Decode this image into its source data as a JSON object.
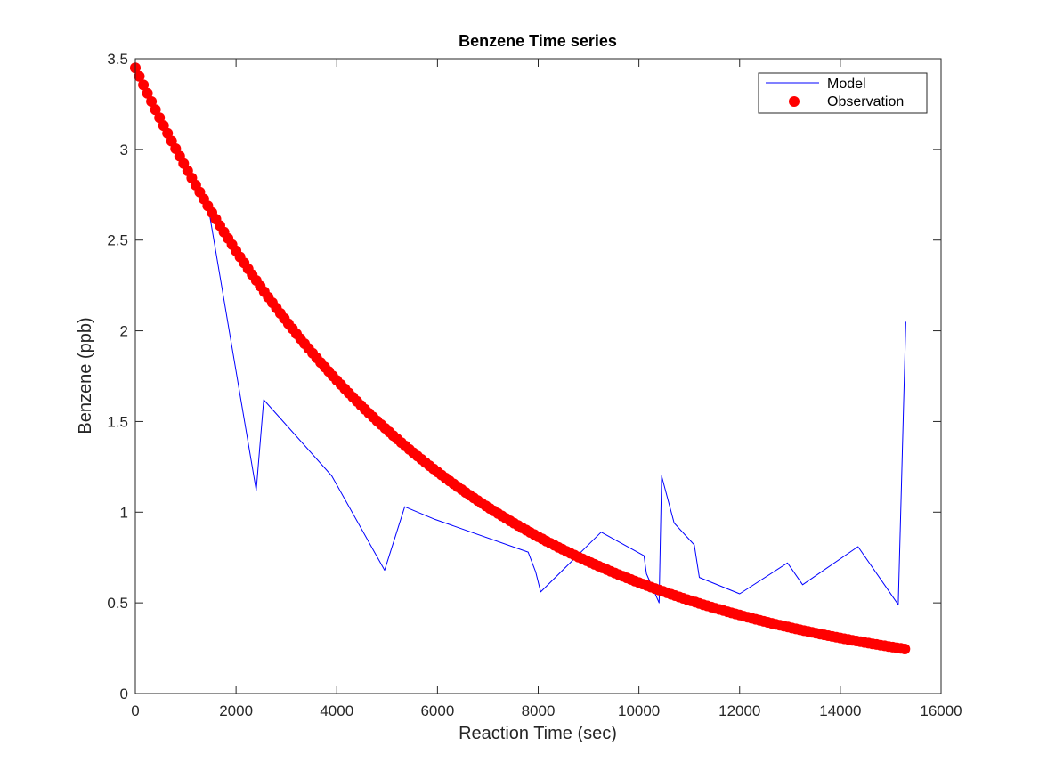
{
  "chart_data": {
    "type": "line",
    "title": "Benzene Time series",
    "xlabel": "Reaction Time (sec)",
    "ylabel": "Benzene (ppb)",
    "xlim": [
      0,
      16000
    ],
    "ylim": [
      0,
      3.5
    ],
    "xticks": [
      "0",
      "2000",
      "4000",
      "6000",
      "8000",
      "10000",
      "12000",
      "14000",
      "16000"
    ],
    "yticks": [
      "0",
      "0.5",
      "1",
      "1.5",
      "2",
      "2.5",
      "3",
      "3.5"
    ],
    "grid": false,
    "legend_position": "top-right",
    "series": [
      {
        "name": "Model",
        "style": "line",
        "color": "#0000ff",
        "points": [
          [
            0,
            3.45
          ],
          [
            1450,
            2.68
          ],
          [
            2400,
            1.12
          ],
          [
            2550,
            1.62
          ],
          [
            3900,
            1.2
          ],
          [
            4950,
            0.68
          ],
          [
            5350,
            1.03
          ],
          [
            5950,
            0.96
          ],
          [
            7800,
            0.78
          ],
          [
            7950,
            0.67
          ],
          [
            8050,
            0.56
          ],
          [
            9250,
            0.89
          ],
          [
            10100,
            0.76
          ],
          [
            10150,
            0.66
          ],
          [
            10400,
            0.5
          ],
          [
            10450,
            1.2
          ],
          [
            10700,
            0.94
          ],
          [
            11100,
            0.82
          ],
          [
            11200,
            0.64
          ],
          [
            12000,
            0.55
          ],
          [
            12950,
            0.72
          ],
          [
            13250,
            0.6
          ],
          [
            14350,
            0.81
          ],
          [
            15150,
            0.49
          ],
          [
            15300,
            2.05
          ]
        ]
      },
      {
        "name": "Observation",
        "style": "markers",
        "color": "#ff0000",
        "model": "exponential",
        "y0": 3.45,
        "decay_per_sec": 0.000173,
        "x_range": [
          0,
          15300
        ],
        "sample_step": 80
      }
    ]
  }
}
